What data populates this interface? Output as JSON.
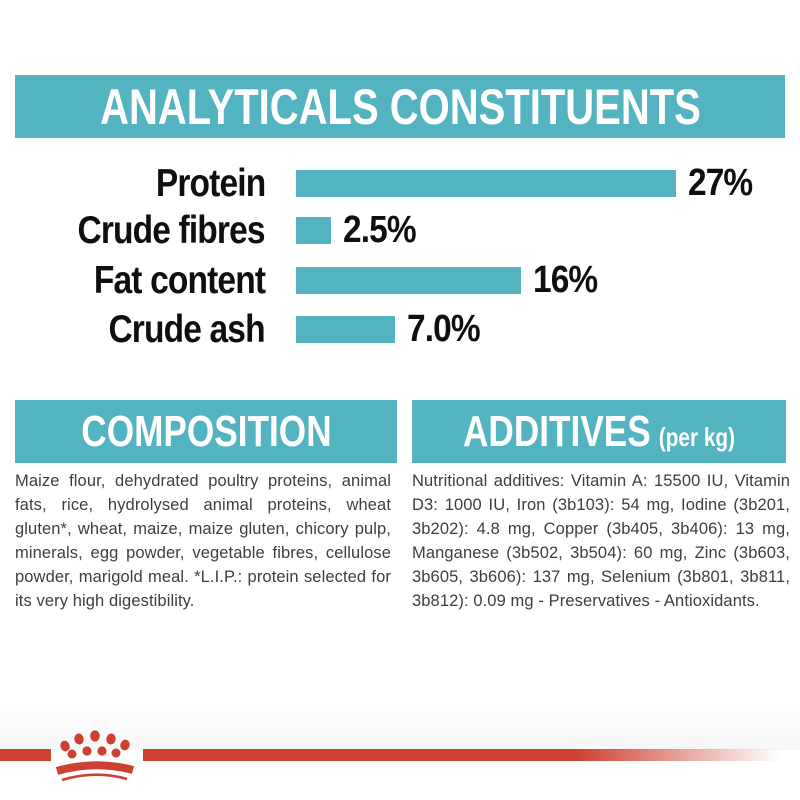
{
  "header": {
    "title": "ANALYTICALS CONSTITUENTS"
  },
  "chart_data": {
    "type": "bar",
    "orientation": "horizontal",
    "title": "ANALYTICALS CONSTITUENTS",
    "categories": [
      "Protein",
      "Crude fibres",
      "Fat content",
      "Crude ash"
    ],
    "values": [
      27,
      2.5,
      16,
      7.0
    ],
    "value_labels": [
      "27%",
      "2.5%",
      "16%",
      "7.0%"
    ],
    "xlim": [
      0,
      27
    ],
    "bar_color": "#53b3c1",
    "grid": "off",
    "legend": "none"
  },
  "sections": {
    "composition": {
      "title": "COMPOSITION",
      "body": "Maize flour, dehydrated poultry proteins, animal fats, rice, hydrolysed animal proteins, wheat gluten*, wheat, maize, maize gluten, chicory pulp, minerals, egg powder, vegetable fibres, cellulose powder, marigold meal. *L.I.P.: protein selected for its very high digestibility."
    },
    "additives": {
      "title": "ADDITIVES",
      "unit_suffix": "(per kg)",
      "body": "Nutritional additives: Vitamin A: 15500 IU, Vitamin D3: 1000 IU, Iron (3b103): 54 mg, Iodine (3b201, 3b202): 4.8 mg, Copper (3b405, 3b406): 13 mg, Manganese (3b502, 3b504): 60 mg, Zinc (3b603, 3b605, 3b606): 137 mg, Selenium (3b801, 3b811, 3b812): 0.09 mg - Preservatives - Antioxidants."
    }
  },
  "footer": {
    "brand_mark": "royal-canin-crown-icon"
  },
  "colors": {
    "teal": "#53b3c1",
    "red": "#cd4133",
    "body_text": "#3e3e3e",
    "chart_text": "#0f0f0f",
    "banner_text": "#ffffff"
  }
}
